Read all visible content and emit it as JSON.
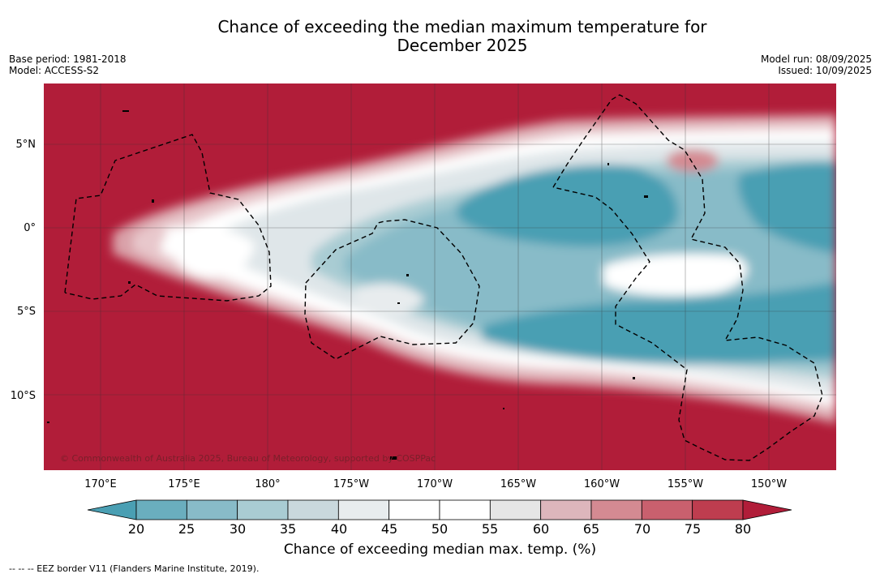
{
  "title_line1": "Chance of exceeding the median maximum temperature for",
  "title_line2": "December 2025",
  "base_period": "Base period: 1981-2018",
  "model": "Model: ACCESS-S2",
  "model_run": "Model run: 08/09/2025",
  "issued": "Issued: 10/09/2025",
  "lat_labels": [
    "5°N",
    "0°",
    "5°S",
    "10°S"
  ],
  "lon_labels": [
    "170°E",
    "175°E",
    "180°",
    "175°W",
    "170°W",
    "165°W",
    "160°W",
    "155°W",
    "150°W"
  ],
  "copyright": "© Commonwealth of Australia 2025, Bureau of Meteorology, supported by COSPPac",
  "colorbar": {
    "ticks": [
      "20",
      "25",
      "30",
      "35",
      "40",
      "45",
      "50",
      "55",
      "60",
      "65",
      "70",
      "75",
      "80"
    ],
    "colors": [
      "#4a9fb3",
      "#6aaebe",
      "#88bbc8",
      "#a9ccd3",
      "#c9d8dd",
      "#e8ecee",
      "#ffffff",
      "#ffffff",
      "#e6e6e6",
      "#ddb6bc",
      "#d48a92",
      "#c9606e",
      "#be3d4f",
      "#b11d39"
    ],
    "label": "Chance of exceeding median max. temp. (%)"
  },
  "footnote": "--  --  -- EEZ border V11 (Flanders Marine Institute, 2019)."
}
